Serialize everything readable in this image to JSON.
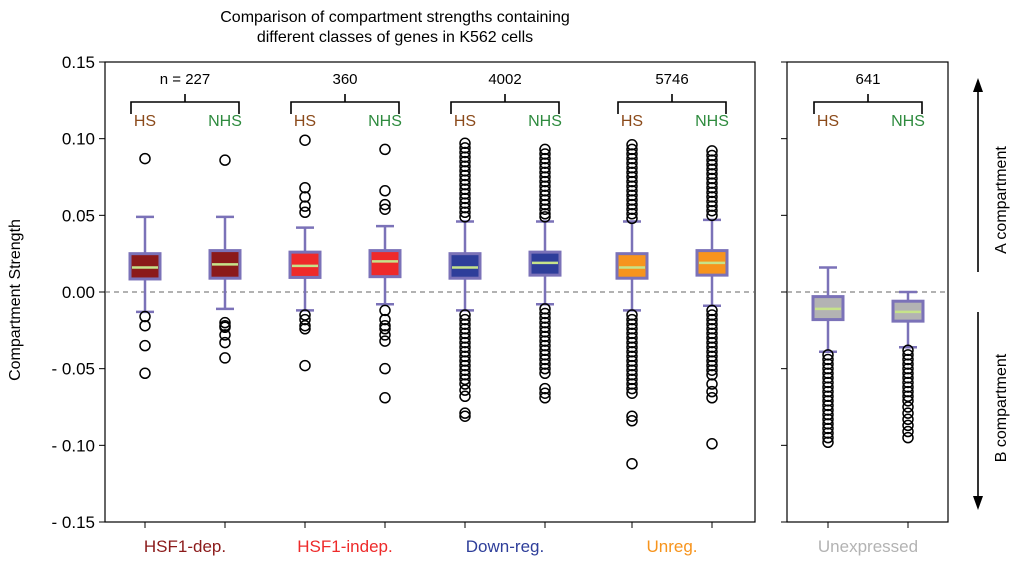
{
  "chart_data": {
    "type": "box",
    "title": "Comparison of compartment strengths containing different classes of genes in K562 cells",
    "title_lines": [
      "Comparison of compartment strengths containing",
      "different classes of genes in K562 cells"
    ],
    "ylabel": "Compartment Strength",
    "ylim": [
      -0.15,
      0.15
    ],
    "yticks": [
      0.15,
      0.1,
      0.05,
      0.0,
      -0.05,
      -0.1,
      -0.15
    ],
    "ytick_labels": [
      "0.15",
      "0.10",
      "0.05",
      "0.00",
      "- 0.05",
      "- 0.10",
      "- 0.15"
    ],
    "zero_line": "dashed",
    "side_labels": {
      "top": "A compartment",
      "bottom": "B compartment"
    },
    "groups": [
      {
        "name": "HSF1-dep.",
        "color": "#8B1A1A",
        "n_label": "n =  227",
        "sub_labels": [
          "HS",
          "NHS"
        ],
        "boxes": [
          {
            "label": "HS",
            "color": "#8B1A1A",
            "q1": 0.0085,
            "median": 0.016,
            "q3": 0.025,
            "whisker_low": -0.013,
            "whisker_high": 0.049,
            "outliers": [
              0.087,
              -0.022,
              -0.035,
              -0.053,
              -0.016
            ]
          },
          {
            "label": "NHS",
            "color": "#8B1A1A",
            "q1": 0.009,
            "median": 0.018,
            "q3": 0.027,
            "whisker_low": -0.011,
            "whisker_high": 0.049,
            "outliers": [
              0.086,
              -0.02,
              -0.022,
              -0.028,
              -0.033,
              -0.043,
              -0.023
            ]
          }
        ]
      },
      {
        "name": "HSF1-indep.",
        "color": "#EE2A2A",
        "n_label": "360",
        "sub_labels": [
          "HS",
          "NHS"
        ],
        "boxes": [
          {
            "label": "HS",
            "color": "#EE2A2A",
            "q1": 0.0095,
            "median": 0.017,
            "q3": 0.026,
            "whisker_low": -0.012,
            "whisker_high": 0.042,
            "outliers": [
              0.099,
              0.068,
              0.062,
              0.056,
              0.052,
              -0.015,
              -0.018,
              -0.022,
              -0.024,
              -0.048
            ]
          },
          {
            "label": "NHS",
            "color": "#EE2A2A",
            "q1": 0.01,
            "median": 0.02,
            "q3": 0.027,
            "whisker_low": -0.008,
            "whisker_high": 0.043,
            "outliers": [
              0.093,
              0.066,
              0.057,
              0.054,
              -0.012,
              -0.018,
              -0.022,
              -0.024,
              -0.028,
              -0.032,
              -0.05,
              -0.069
            ]
          }
        ]
      },
      {
        "name": "Down-reg.",
        "color": "#2E3E9A",
        "n_label": "4002",
        "sub_labels": [
          "HS",
          "NHS"
        ],
        "boxes": [
          {
            "label": "HS",
            "color": "#2E3E9A",
            "q1": 0.009,
            "median": 0.016,
            "q3": 0.025,
            "whisker_low": -0.012,
            "whisker_high": 0.046,
            "outliers": [
              0.097,
              0.094,
              0.091,
              0.088,
              0.085,
              0.082,
              0.079,
              0.076,
              0.073,
              0.07,
              0.067,
              0.064,
              0.061,
              0.058,
              0.055,
              0.052,
              0.049,
              -0.015,
              -0.018,
              -0.021,
              -0.024,
              -0.027,
              -0.03,
              -0.033,
              -0.036,
              -0.039,
              -0.042,
              -0.045,
              -0.048,
              -0.051,
              -0.054,
              -0.057,
              -0.06,
              -0.064,
              -0.068,
              -0.081,
              -0.079
            ]
          },
          {
            "label": "NHS",
            "color": "#2E3E9A",
            "q1": 0.011,
            "median": 0.019,
            "q3": 0.026,
            "whisker_low": -0.008,
            "whisker_high": 0.046,
            "outliers": [
              0.093,
              0.09,
              0.087,
              0.084,
              0.081,
              0.078,
              0.075,
              0.072,
              0.069,
              0.066,
              0.063,
              0.06,
              0.057,
              0.054,
              0.051,
              0.049,
              -0.011,
              -0.014,
              -0.017,
              -0.02,
              -0.023,
              -0.026,
              -0.029,
              -0.032,
              -0.035,
              -0.038,
              -0.041,
              -0.044,
              -0.047,
              -0.05,
              -0.053,
              -0.063,
              -0.066,
              -0.069
            ]
          }
        ]
      },
      {
        "name": "Unreg.",
        "color": "#F7941D",
        "n_label": "5746",
        "sub_labels": [
          "HS",
          "NHS"
        ],
        "boxes": [
          {
            "label": "HS",
            "color": "#F7941D",
            "q1": 0.009,
            "median": 0.016,
            "q3": 0.025,
            "whisker_low": -0.012,
            "whisker_high": 0.046,
            "outliers": [
              0.096,
              0.093,
              0.09,
              0.087,
              0.084,
              0.081,
              0.078,
              0.075,
              0.072,
              0.069,
              0.066,
              0.063,
              0.06,
              0.057,
              0.054,
              0.051,
              0.048,
              -0.015,
              -0.018,
              -0.021,
              -0.024,
              -0.027,
              -0.03,
              -0.033,
              -0.036,
              -0.039,
              -0.042,
              -0.045,
              -0.048,
              -0.051,
              -0.054,
              -0.057,
              -0.06,
              -0.063,
              -0.066,
              -0.081,
              -0.084,
              -0.112
            ]
          },
          {
            "label": "NHS",
            "color": "#F7941D",
            "q1": 0.011,
            "median": 0.019,
            "q3": 0.027,
            "whisker_low": -0.009,
            "whisker_high": 0.047,
            "outliers": [
              0.092,
              0.089,
              0.086,
              0.083,
              0.08,
              0.077,
              0.074,
              0.071,
              0.068,
              0.065,
              0.062,
              0.059,
              0.056,
              0.053,
              0.05,
              -0.012,
              -0.015,
              -0.018,
              -0.021,
              -0.024,
              -0.027,
              -0.03,
              -0.033,
              -0.036,
              -0.039,
              -0.042,
              -0.045,
              -0.048,
              -0.051,
              -0.054,
              -0.06,
              -0.065,
              -0.069,
              -0.099
            ]
          }
        ]
      },
      {
        "name": "Unexpressed",
        "color": "#B3B3B3",
        "n_label": "641",
        "sub_labels": [
          "HS",
          "NHS"
        ],
        "boxes": [
          {
            "label": "HS",
            "color": "#B3B3B3",
            "q1": -0.018,
            "median": -0.011,
            "q3": -0.003,
            "whisker_low": -0.039,
            "whisker_high": 0.016,
            "outliers": [
              -0.041,
              -0.044,
              -0.047,
              -0.05,
              -0.053,
              -0.056,
              -0.059,
              -0.062,
              -0.065,
              -0.068,
              -0.071,
              -0.074,
              -0.077,
              -0.08,
              -0.083,
              -0.086,
              -0.089,
              -0.092,
              -0.095,
              -0.098
            ]
          },
          {
            "label": "NHS",
            "color": "#B3B3B3",
            "q1": -0.019,
            "median": -0.013,
            "q3": -0.006,
            "whisker_low": -0.036,
            "whisker_high": 0.0,
            "outliers": [
              -0.038,
              -0.041,
              -0.044,
              -0.047,
              -0.05,
              -0.053,
              -0.056,
              -0.059,
              -0.062,
              -0.065,
              -0.068,
              -0.071,
              -0.075,
              -0.079,
              -0.083,
              -0.087,
              -0.091,
              -0.095
            ]
          }
        ]
      }
    ]
  },
  "colors": {
    "box_edge": "#7B72B8",
    "median": "#C6E38A",
    "hs_label": "#8B4A1A",
    "nhs_label": "#2E8B3E"
  }
}
